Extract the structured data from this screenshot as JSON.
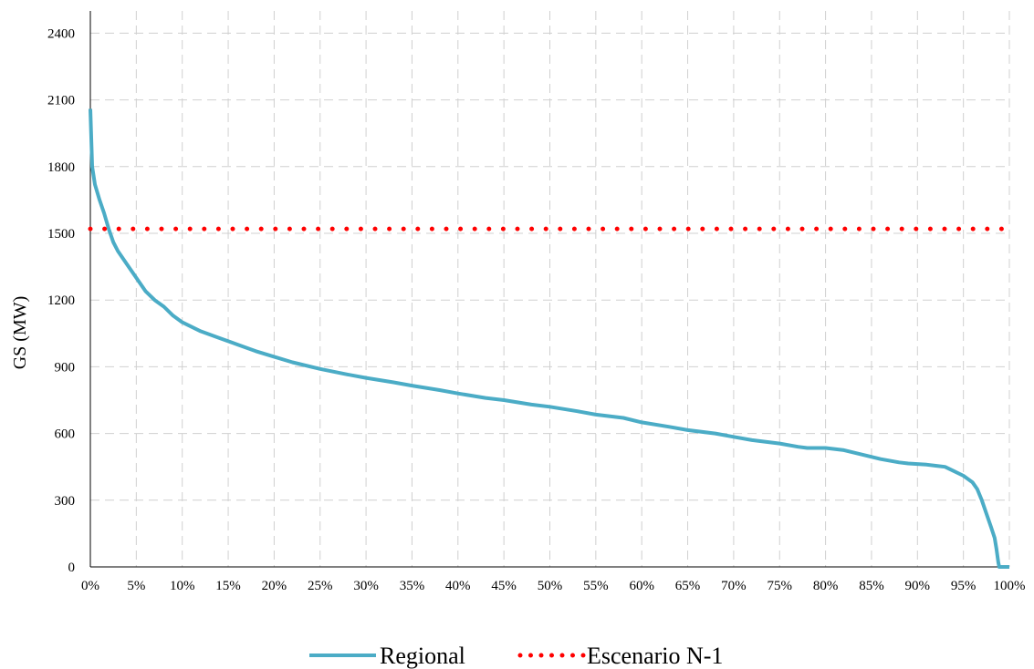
{
  "chart_data": {
    "type": "line",
    "title": "",
    "xlabel": "",
    "ylabel": "GS (MW)",
    "xlim": [
      0,
      100
    ],
    "ylim": [
      0,
      2500
    ],
    "x_ticks": [
      0,
      5,
      10,
      15,
      20,
      25,
      30,
      35,
      40,
      45,
      50,
      55,
      60,
      65,
      70,
      75,
      80,
      85,
      90,
      95,
      100
    ],
    "x_tick_labels": [
      "0%",
      "5%",
      "10%",
      "15%",
      "20%",
      "25%",
      "30%",
      "35%",
      "40%",
      "45%",
      "50%",
      "55%",
      "60%",
      "65%",
      "70%",
      "75%",
      "80%",
      "85%",
      "90%",
      "95%",
      "100%"
    ],
    "y_ticks": [
      0,
      300,
      600,
      900,
      1200,
      1500,
      1800,
      2100,
      2400
    ],
    "y_tick_labels": [
      "0",
      "300",
      "600",
      "900",
      "1200",
      "1500",
      "1800",
      "2100",
      "2400"
    ],
    "grid": true,
    "grid_style": "dashed",
    "legend_position": "bottom",
    "series": [
      {
        "name": "Regional",
        "color": "#4bacc6",
        "style": "solid",
        "x": [
          0,
          0.2,
          0.5,
          1,
          1.5,
          2,
          2.5,
          3,
          4,
          5,
          6,
          7,
          8,
          9,
          10,
          12,
          14,
          16,
          18,
          20,
          22,
          25,
          28,
          30,
          33,
          35,
          38,
          40,
          43,
          45,
          48,
          50,
          53,
          55,
          58,
          60,
          63,
          65,
          68,
          70,
          72,
          75,
          77,
          78,
          80,
          82,
          84,
          86,
          88,
          89,
          91,
          92,
          93,
          94,
          95,
          96,
          96.5,
          97,
          97.5,
          98,
          98.4,
          98.6,
          98.8,
          98.9,
          99.2,
          100
        ],
        "y": [
          2060,
          1800,
          1720,
          1650,
          1590,
          1520,
          1460,
          1420,
          1360,
          1300,
          1240,
          1200,
          1170,
          1130,
          1100,
          1060,
          1030,
          1000,
          970,
          945,
          920,
          890,
          865,
          850,
          830,
          815,
          795,
          780,
          760,
          750,
          730,
          720,
          700,
          685,
          670,
          650,
          630,
          615,
          600,
          585,
          570,
          555,
          540,
          535,
          535,
          525,
          505,
          485,
          470,
          465,
          460,
          455,
          450,
          430,
          410,
          380,
          350,
          300,
          240,
          180,
          130,
          80,
          20,
          0,
          0,
          0
        ]
      },
      {
        "name": "Escenario N-1",
        "color": "#ff0000",
        "style": "dotted",
        "x": [
          0,
          100
        ],
        "y": [
          1520,
          1520
        ]
      }
    ]
  }
}
